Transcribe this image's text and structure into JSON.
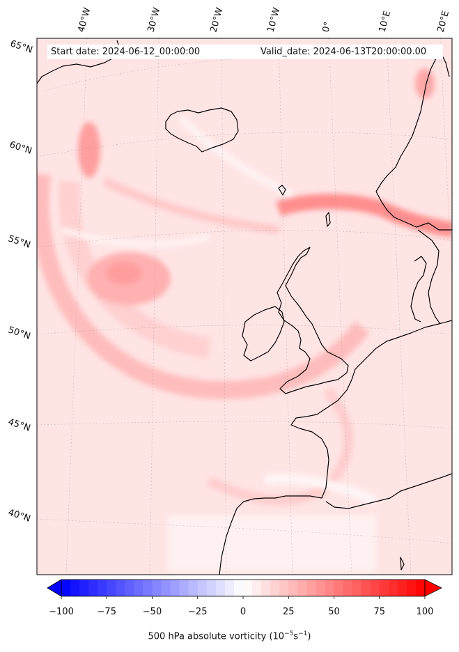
{
  "map": {
    "start_label": "Start date: 2024-06-12_00:00:00",
    "valid_label": "Valid_date: 2024-06-13T20:00:00.00",
    "lon_labels": [
      "40°W",
      "30°W",
      "20°W",
      "10°W",
      "0°",
      "10°E",
      "20°E"
    ],
    "lat_labels": [
      "65°N",
      "60°N",
      "55°N",
      "50°N",
      "45°N",
      "40°N"
    ],
    "background_color": "#ffe8e8",
    "coastline_color": "#000000"
  },
  "colorbar": {
    "label_prefix": "500 hPa absolute vorticity (10",
    "label_exp1": "−5",
    "label_mid": "s",
    "label_exp2": "−1",
    "label_suffix": ")",
    "ticks": [
      "−100",
      "−75",
      "−50",
      "−25",
      "0",
      "25",
      "50",
      "75",
      "100"
    ],
    "range": [
      -100,
      100
    ],
    "min_color": "#0000ff",
    "mid_color": "#ffffff",
    "max_color": "#ff0000"
  }
}
